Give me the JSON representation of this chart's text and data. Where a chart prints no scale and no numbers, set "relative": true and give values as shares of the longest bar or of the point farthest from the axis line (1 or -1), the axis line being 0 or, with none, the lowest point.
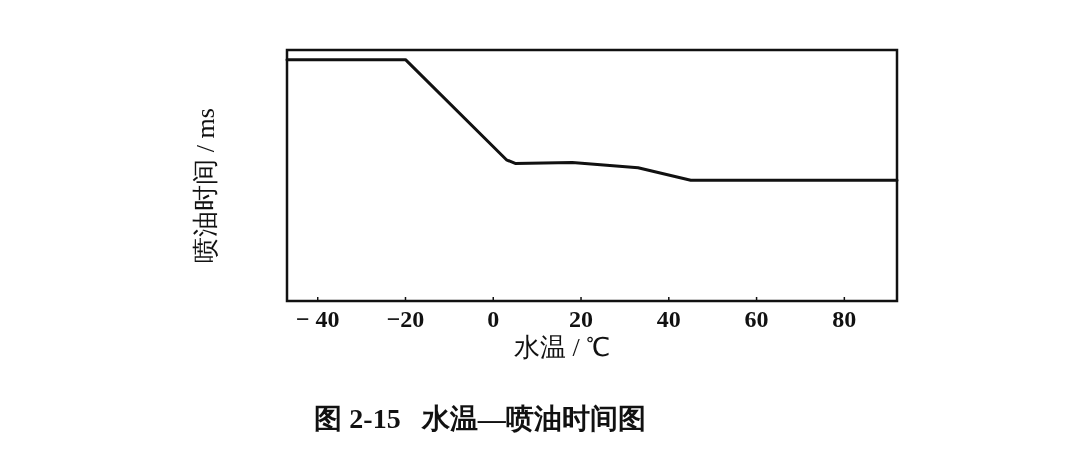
{
  "chart_data": {
    "type": "line",
    "title": "图 2-15   水温—喷油时间图",
    "xlabel": "水温 / ℃",
    "ylabel": "喷油时间 / ms",
    "relative": true,
    "color": "#111111",
    "x": [
      -47,
      -20,
      3,
      5,
      18,
      33,
      45,
      92
    ],
    "values": [
      1,
      1,
      0.585,
      0.57,
      0.574,
      0.552,
      0.5,
      0.5
    ],
    "xlim": [
      -47,
      92
    ],
    "xticks": [
      {
        "value": -40,
        "label": "− 40"
      },
      {
        "value": -20,
        "label": "−20"
      },
      0,
      20,
      40,
      60,
      80
    ],
    "grid": false,
    "marker": "none",
    "line_style": "solid"
  }
}
